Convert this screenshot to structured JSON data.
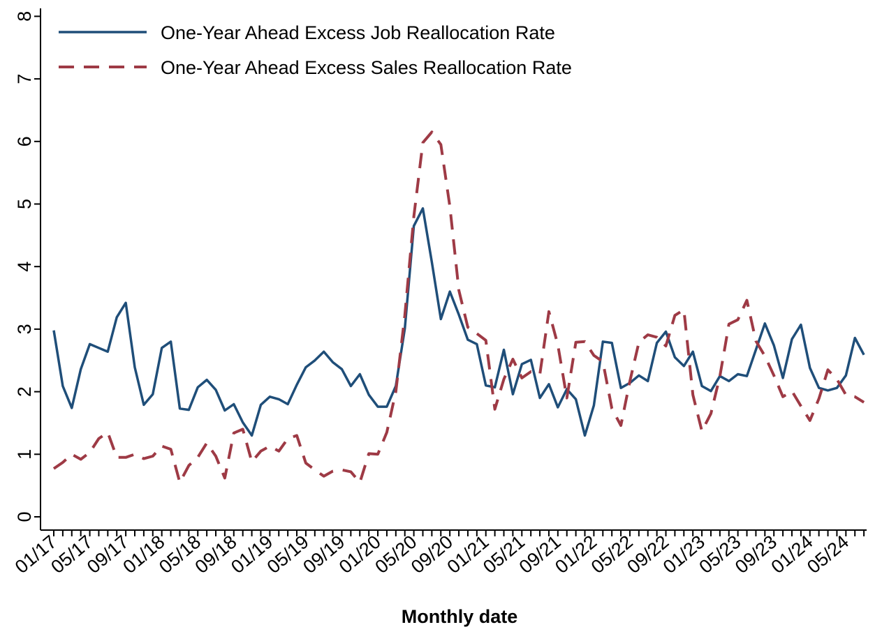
{
  "colors": {
    "job": "#1f4e79",
    "sales": "#9e3a45",
    "axis": "#000000",
    "background": "#ffffff"
  },
  "chart_data": {
    "type": "line",
    "title": "",
    "xlabel": "Monthly date",
    "ylabel": "",
    "ylim": [
      0,
      8
    ],
    "yticks": [
      0,
      1,
      2,
      3,
      4,
      5,
      6,
      7,
      8
    ],
    "grid": false,
    "legend_position": "top-left",
    "x_tick_labels": [
      "01/17",
      "05/17",
      "09/17",
      "01/18",
      "05/18",
      "09/18",
      "01/19",
      "05/19",
      "09/19",
      "01/20",
      "05/20",
      "09/20",
      "01/21",
      "05/21",
      "09/21",
      "01/22",
      "05/22",
      "09/22",
      "01/23",
      "05/23",
      "09/23",
      "01/24",
      "05/24"
    ],
    "x_start": "2017-01",
    "x_end": "2024-07",
    "series": [
      {
        "name": "One-Year Ahead Excess Job Reallocation Rate",
        "style": "solid",
        "color": "#1f4e79",
        "values": [
          2.98,
          2.09,
          1.74,
          2.36,
          2.76,
          2.7,
          2.64,
          3.19,
          3.42,
          2.39,
          1.79,
          1.96,
          2.7,
          2.8,
          1.73,
          1.71,
          2.07,
          2.19,
          2.03,
          1.7,
          1.8,
          1.51,
          1.3,
          1.79,
          1.92,
          1.88,
          1.8,
          2.11,
          2.39,
          2.5,
          2.64,
          2.47,
          2.36,
          2.09,
          2.28,
          1.95,
          1.76,
          1.76,
          2.09,
          3.01,
          4.65,
          4.93,
          4.07,
          3.16,
          3.6,
          3.23,
          2.83,
          2.76,
          2.1,
          2.07,
          2.67,
          1.96,
          2.44,
          2.51,
          1.9,
          2.12,
          1.75,
          2.04,
          1.88,
          1.3,
          1.78,
          2.8,
          2.78,
          2.06,
          2.14,
          2.26,
          2.17,
          2.78,
          2.96,
          2.55,
          2.41,
          2.64,
          2.09,
          2.01,
          2.25,
          2.17,
          2.28,
          2.25,
          2.67,
          3.09,
          2.74,
          2.22,
          2.84,
          3.07,
          2.38,
          2.06,
          2.02,
          2.06,
          2.26,
          2.86,
          2.59
        ]
      },
      {
        "name": "One-Year Ahead Excess Sales Reallocation Rate",
        "style": "dashed",
        "color": "#9e3a45",
        "values": [
          0.77,
          0.87,
          1.0,
          0.92,
          1.03,
          1.25,
          1.35,
          0.95,
          0.95,
          1.0,
          0.93,
          0.97,
          1.13,
          1.08,
          0.55,
          0.82,
          0.95,
          1.18,
          0.97,
          0.62,
          1.34,
          1.4,
          0.88,
          1.05,
          1.13,
          1.05,
          1.25,
          1.3,
          0.86,
          0.75,
          0.65,
          0.73,
          0.75,
          0.72,
          0.55,
          1.01,
          1.0,
          1.35,
          2.0,
          3.22,
          4.8,
          5.98,
          6.15,
          5.95,
          4.96,
          3.62,
          3.03,
          2.93,
          2.82,
          1.72,
          2.2,
          2.52,
          2.22,
          2.32,
          2.28,
          3.28,
          2.75,
          1.9,
          2.79,
          2.8,
          2.58,
          2.48,
          1.73,
          1.46,
          2.17,
          2.79,
          2.91,
          2.87,
          2.73,
          3.22,
          3.31,
          1.95,
          1.37,
          1.65,
          2.25,
          3.08,
          3.15,
          3.46,
          2.81,
          2.57,
          2.26,
          1.92,
          2.01,
          1.77,
          1.54,
          1.89,
          2.35,
          2.2,
          1.95,
          1.92,
          1.83
        ]
      }
    ]
  }
}
